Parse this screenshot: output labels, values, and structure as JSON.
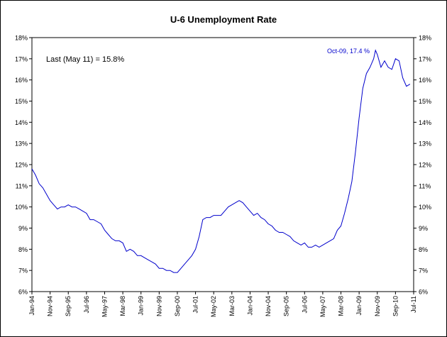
{
  "chart_data": {
    "type": "line",
    "title": "U-6 Unemployment Rate",
    "annotations": {
      "last": "Last (May 11) = 15.8%",
      "peak": "Oct-09, 17.4 %"
    },
    "y_ticks": [
      "6%",
      "7%",
      "8%",
      "9%",
      "10%",
      "11%",
      "12%",
      "13%",
      "14%",
      "15%",
      "16%",
      "17%",
      "18%"
    ],
    "x_ticks": [
      "Jan-94",
      "Nov-94",
      "Sep-95",
      "Jul-96",
      "May-97",
      "Mar-98",
      "Jan-99",
      "Nov-99",
      "Sep-00",
      "Jul-01",
      "May-02",
      "Mar-03",
      "Jan-04",
      "Nov-04",
      "Sep-05",
      "Jul-06",
      "May-07",
      "Mar-08",
      "Jan-09",
      "Nov-09",
      "Sep-10",
      "Jul-11"
    ],
    "ylim": [
      6,
      18
    ],
    "xlim": [
      "1994-01",
      "2011-07"
    ],
    "grid": false,
    "series": [
      {
        "color": "#0000cc",
        "points": [
          [
            "1994-01",
            11.8
          ],
          [
            "1994-03",
            11.5
          ],
          [
            "1994-05",
            11.1
          ],
          [
            "1994-07",
            10.9
          ],
          [
            "1994-09",
            10.6
          ],
          [
            "1994-11",
            10.3
          ],
          [
            "1995-01",
            10.1
          ],
          [
            "1995-03",
            9.9
          ],
          [
            "1995-05",
            10.0
          ],
          [
            "1995-07",
            10.0
          ],
          [
            "1995-09",
            10.1
          ],
          [
            "1995-11",
            10.0
          ],
          [
            "1996-01",
            10.0
          ],
          [
            "1996-03",
            9.9
          ],
          [
            "1996-05",
            9.8
          ],
          [
            "1996-07",
            9.7
          ],
          [
            "1996-09",
            9.4
          ],
          [
            "1996-11",
            9.4
          ],
          [
            "1997-01",
            9.3
          ],
          [
            "1997-03",
            9.2
          ],
          [
            "1997-05",
            8.9
          ],
          [
            "1997-07",
            8.7
          ],
          [
            "1997-09",
            8.5
          ],
          [
            "1997-11",
            8.4
          ],
          [
            "1998-01",
            8.4
          ],
          [
            "1998-03",
            8.3
          ],
          [
            "1998-05",
            7.9
          ],
          [
            "1998-07",
            8.0
          ],
          [
            "1998-09",
            7.9
          ],
          [
            "1998-11",
            7.7
          ],
          [
            "1999-01",
            7.7
          ],
          [
            "1999-03",
            7.6
          ],
          [
            "1999-05",
            7.5
          ],
          [
            "1999-07",
            7.4
          ],
          [
            "1999-09",
            7.3
          ],
          [
            "1999-11",
            7.1
          ],
          [
            "2000-01",
            7.1
          ],
          [
            "2000-03",
            7.0
          ],
          [
            "2000-05",
            7.0
          ],
          [
            "2000-07",
            6.9
          ],
          [
            "2000-09",
            6.9
          ],
          [
            "2000-11",
            7.1
          ],
          [
            "2001-01",
            7.3
          ],
          [
            "2001-03",
            7.5
          ],
          [
            "2001-05",
            7.7
          ],
          [
            "2001-07",
            8.0
          ],
          [
            "2001-09",
            8.6
          ],
          [
            "2001-11",
            9.4
          ],
          [
            "2002-01",
            9.5
          ],
          [
            "2002-03",
            9.5
          ],
          [
            "2002-05",
            9.6
          ],
          [
            "2002-07",
            9.6
          ],
          [
            "2002-09",
            9.6
          ],
          [
            "2002-11",
            9.8
          ],
          [
            "2003-01",
            10.0
          ],
          [
            "2003-03",
            10.1
          ],
          [
            "2003-05",
            10.2
          ],
          [
            "2003-07",
            10.3
          ],
          [
            "2003-09",
            10.2
          ],
          [
            "2003-11",
            10.0
          ],
          [
            "2004-01",
            9.8
          ],
          [
            "2004-03",
            9.6
          ],
          [
            "2004-05",
            9.7
          ],
          [
            "2004-07",
            9.5
          ],
          [
            "2004-09",
            9.4
          ],
          [
            "2004-11",
            9.2
          ],
          [
            "2005-01",
            9.1
          ],
          [
            "2005-03",
            8.9
          ],
          [
            "2005-05",
            8.8
          ],
          [
            "2005-07",
            8.8
          ],
          [
            "2005-09",
            8.7
          ],
          [
            "2005-11",
            8.6
          ],
          [
            "2006-01",
            8.4
          ],
          [
            "2006-03",
            8.3
          ],
          [
            "2006-05",
            8.2
          ],
          [
            "2006-07",
            8.3
          ],
          [
            "2006-09",
            8.1
          ],
          [
            "2006-11",
            8.1
          ],
          [
            "2007-01",
            8.2
          ],
          [
            "2007-03",
            8.1
          ],
          [
            "2007-05",
            8.2
          ],
          [
            "2007-07",
            8.3
          ],
          [
            "2007-09",
            8.4
          ],
          [
            "2007-11",
            8.5
          ],
          [
            "2008-01",
            8.9
          ],
          [
            "2008-03",
            9.1
          ],
          [
            "2008-05",
            9.7
          ],
          [
            "2008-07",
            10.4
          ],
          [
            "2008-09",
            11.2
          ],
          [
            "2008-11",
            12.6
          ],
          [
            "2009-01",
            14.2
          ],
          [
            "2009-03",
            15.6
          ],
          [
            "2009-05",
            16.3
          ],
          [
            "2009-07",
            16.6
          ],
          [
            "2009-09",
            17.0
          ],
          [
            "2009-10",
            17.4
          ],
          [
            "2009-11",
            17.2
          ],
          [
            "2010-01",
            16.6
          ],
          [
            "2010-03",
            16.9
          ],
          [
            "2010-05",
            16.6
          ],
          [
            "2010-07",
            16.5
          ],
          [
            "2010-09",
            17.0
          ],
          [
            "2010-11",
            16.9
          ],
          [
            "2011-01",
            16.1
          ],
          [
            "2011-03",
            15.7
          ],
          [
            "2011-05",
            15.8
          ]
        ]
      }
    ]
  }
}
